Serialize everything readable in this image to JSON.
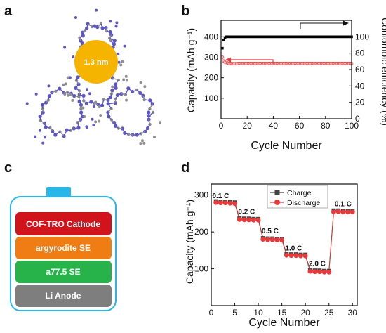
{
  "panels": {
    "a": {
      "letter": "a",
      "pore_label": "1.3 nm",
      "pore_color": "#f5b400"
    },
    "b": {
      "letter": "b"
    },
    "c": {
      "letter": "c",
      "layers": [
        {
          "label": "COF-TRO Cathode",
          "color": "#d1141c"
        },
        {
          "label": "argyrodite SE",
          "color": "#f07d14"
        },
        {
          "label": "a77.5 SE",
          "color": "#27b34a"
        },
        {
          "label": "Li Anode",
          "color": "#7e7e7e"
        }
      ],
      "frame_color": "#29b6e8"
    },
    "d": {
      "letter": "d"
    }
  },
  "chart_data": [
    {
      "type": "scatter",
      "panel": "b",
      "xlabel": "Cycle Number",
      "ylabel": "Capacity (mAh g⁻¹)",
      "y2label": "Coulombic efficiency (%)",
      "xlim": [
        0,
        100
      ],
      "ylim": [
        0,
        480
      ],
      "y2lim": [
        0,
        120
      ],
      "xticks": [
        0,
        20,
        40,
        60,
        80,
        100
      ],
      "yticks": [
        100,
        200,
        300,
        400
      ],
      "y2ticks": [
        0,
        20,
        40,
        60,
        80,
        100
      ],
      "series": [
        {
          "axis": "right",
          "color": "#000000",
          "x": [
            1,
            2,
            3,
            4,
            5,
            6,
            7,
            8,
            9,
            10,
            11,
            12,
            13,
            14,
            15,
            16,
            17,
            18,
            19,
            20,
            21,
            22,
            23,
            24,
            25,
            26,
            27,
            28,
            29,
            30,
            31,
            32,
            33,
            34,
            35,
            36,
            37,
            38,
            39,
            40,
            41,
            42,
            43,
            44,
            45,
            46,
            47,
            48,
            49,
            50,
            51,
            52,
            53,
            54,
            55,
            56,
            57,
            58,
            59,
            60,
            61,
            62,
            63,
            64,
            65,
            66,
            67,
            68,
            69,
            70,
            71,
            72,
            73,
            74,
            75,
            76,
            77,
            78,
            79,
            80,
            81,
            82,
            83,
            84,
            85,
            86,
            87,
            88,
            89,
            90,
            91,
            92,
            93,
            94,
            95,
            96,
            97,
            98,
            99,
            100
          ],
          "values": [
            86,
            96,
            99,
            100,
            100,
            100,
            100,
            100,
            100,
            100,
            100,
            100,
            100,
            100,
            100,
            100,
            100,
            100,
            100,
            100,
            100,
            100,
            100,
            100,
            100,
            100,
            100,
            100,
            100,
            100,
            100,
            100,
            100,
            100,
            100,
            100,
            100,
            100,
            100,
            100,
            100,
            100,
            100,
            100,
            100,
            100,
            100,
            100,
            100,
            100,
            100,
            100,
            100,
            100,
            100,
            100,
            100,
            100,
            100,
            100,
            100,
            100,
            100,
            100,
            100,
            100,
            100,
            100,
            100,
            100,
            100,
            100,
            100,
            100,
            100,
            100,
            100,
            100,
            100,
            100,
            100,
            100,
            100,
            100,
            100,
            100,
            100,
            100,
            100,
            100,
            100,
            100,
            100,
            100,
            100,
            100,
            100,
            100,
            100,
            100
          ]
        },
        {
          "axis": "left",
          "color": "#e8393b",
          "x": [
            1,
            2,
            3,
            4,
            5,
            6,
            7,
            8,
            9,
            10,
            11,
            12,
            13,
            14,
            15,
            16,
            17,
            18,
            19,
            20,
            21,
            22,
            23,
            24,
            25,
            26,
            27,
            28,
            29,
            30,
            31,
            32,
            33,
            34,
            35,
            36,
            37,
            38,
            39,
            40,
            41,
            42,
            43,
            44,
            45,
            46,
            47,
            48,
            49,
            50,
            51,
            52,
            53,
            54,
            55,
            56,
            57,
            58,
            59,
            60,
            61,
            62,
            63,
            64,
            65,
            66,
            67,
            68,
            69,
            70,
            71,
            72,
            73,
            74,
            75,
            76,
            77,
            78,
            79,
            80,
            81,
            82,
            83,
            84,
            85,
            86,
            87,
            88,
            89,
            90,
            91,
            92,
            93,
            94,
            95,
            96,
            97,
            98,
            99,
            100
          ],
          "values": [
            300,
            282,
            276,
            274,
            272,
            270,
            270,
            270,
            269,
            269,
            269,
            269,
            270,
            270,
            270,
            270,
            270,
            270,
            270,
            270,
            270,
            270,
            270,
            270,
            270,
            270,
            270,
            270,
            270,
            270,
            270,
            270,
            270,
            270,
            270,
            270,
            270,
            270,
            270,
            270,
            270,
            270,
            270,
            270,
            270,
            270,
            270,
            270,
            270,
            270,
            270,
            270,
            270,
            270,
            270,
            270,
            270,
            270,
            270,
            270,
            270,
            270,
            270,
            270,
            270,
            270,
            270,
            270,
            270,
            270,
            270,
            270,
            270,
            270,
            270,
            270,
            270,
            270,
            270,
            270,
            270,
            270,
            270,
            270,
            270,
            270,
            270,
            270,
            270,
            270,
            270,
            270,
            270,
            270,
            270,
            270,
            270,
            270,
            270,
            270
          ]
        }
      ]
    },
    {
      "type": "line",
      "panel": "d",
      "xlabel": "Cycle Number",
      "ylabel": "Capacity (mAh g⁻¹)",
      "xlim": [
        0,
        31
      ],
      "ylim": [
        0,
        330
      ],
      "xticks": [
        0,
        5,
        10,
        15,
        20,
        25,
        30
      ],
      "yticks": [
        100,
        200,
        300
      ],
      "legend": "top-right",
      "rates": [
        {
          "label": "0.1 C",
          "x": 2,
          "y": 292
        },
        {
          "label": "0.2 C",
          "x": 7.5,
          "y": 249
        },
        {
          "label": "0.5 C",
          "x": 12.5,
          "y": 196
        },
        {
          "label": "1.0 C",
          "x": 17.5,
          "y": 150
        },
        {
          "label": "2.0 C",
          "x": 22.5,
          "y": 108
        },
        {
          "label": "0.1 C",
          "x": 28,
          "y": 270
        }
      ],
      "series": [
        {
          "name": "Charge",
          "color": "#444444",
          "marker": "square",
          "x": [
            1,
            2,
            3,
            4,
            5,
            6,
            7,
            8,
            9,
            10,
            11,
            12,
            13,
            14,
            15,
            16,
            17,
            18,
            19,
            20,
            21,
            22,
            23,
            24,
            25,
            26,
            27,
            28,
            29,
            30
          ],
          "values": [
            283,
            282,
            282,
            281,
            280,
            237,
            236,
            236,
            235,
            235,
            183,
            182,
            182,
            181,
            181,
            140,
            139,
            139,
            138,
            138,
            96,
            95,
            95,
            94,
            94,
            258,
            258,
            257,
            257,
            257
          ]
        },
        {
          "name": "Discharge",
          "color": "#e8393b",
          "marker": "circle",
          "x": [
            1,
            2,
            3,
            4,
            5,
            6,
            7,
            8,
            9,
            10,
            11,
            12,
            13,
            14,
            15,
            16,
            17,
            18,
            19,
            20,
            21,
            22,
            23,
            24,
            25,
            26,
            27,
            28,
            29,
            30
          ],
          "values": [
            280,
            279,
            279,
            278,
            277,
            234,
            233,
            233,
            232,
            232,
            180,
            179,
            179,
            178,
            178,
            137,
            136,
            136,
            135,
            135,
            93,
            92,
            92,
            91,
            91,
            254,
            255,
            254,
            254,
            254
          ]
        }
      ]
    }
  ]
}
